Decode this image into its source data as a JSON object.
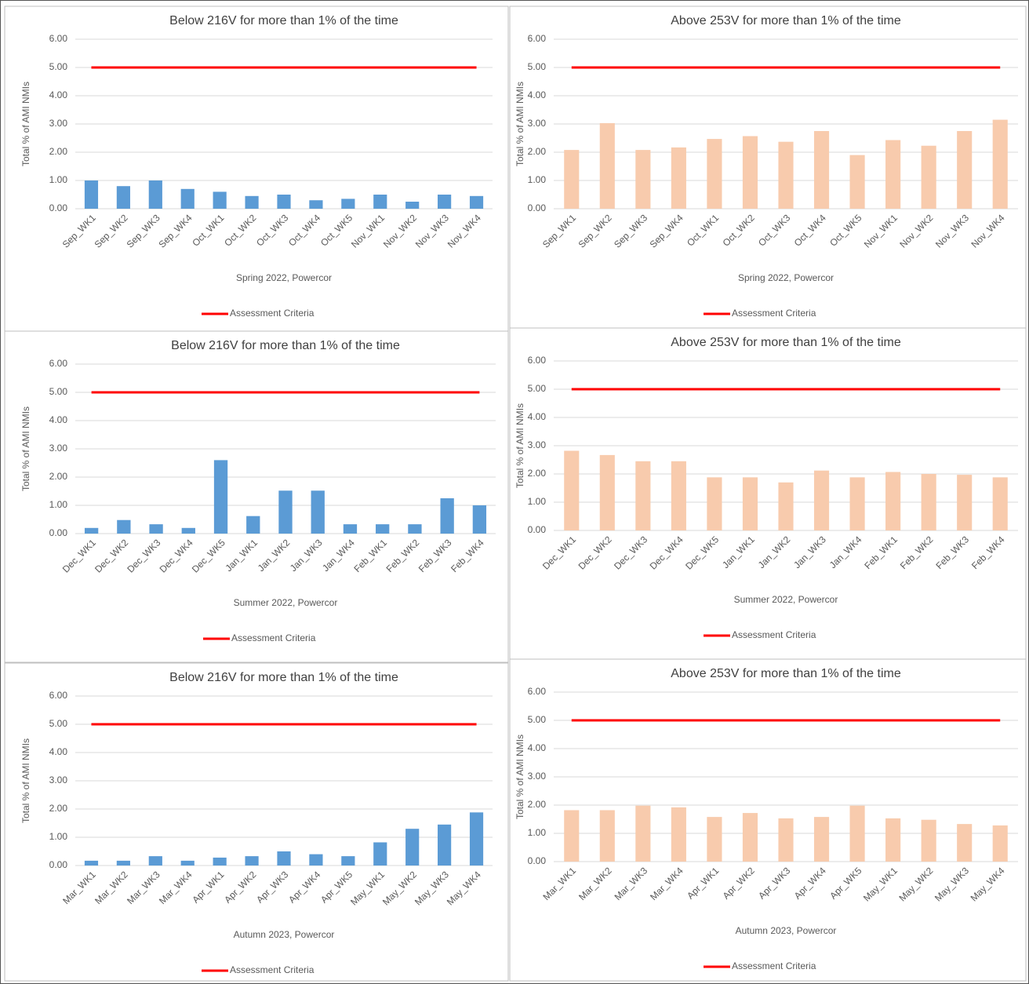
{
  "chart_data": [
    {
      "type": "bar",
      "title": "Below 216V for more than 1% of the time",
      "xlabel": "Spring 2022,  Powercor",
      "ylabel": "Total % of AMI NMIs",
      "categories": [
        "Sep_WK1",
        "Sep_WK2",
        "Sep_WK3",
        "Sep_WK4",
        "Oct_WK1",
        "Oct_WK2",
        "Oct_WK3",
        "Oct_WK4",
        "Oct_WK5",
        "Nov_WK1",
        "Nov_WK2",
        "Nov_WK3",
        "Nov_WK4"
      ],
      "values": [
        1.0,
        0.8,
        1.0,
        0.7,
        0.6,
        0.45,
        0.5,
        0.3,
        0.35,
        0.5,
        0.25,
        0.5,
        0.45
      ],
      "color": "#5b9bd5",
      "reference_line": {
        "name": "Assessment Criteria",
        "color": "#ff0000",
        "value": 5
      },
      "ylim": [
        0,
        6
      ],
      "yticks": [
        {
          "value": 0,
          "label": "0.00"
        },
        {
          "value": 1,
          "label": "1.00"
        },
        {
          "value": 2,
          "label": "2.00"
        },
        {
          "value": 3,
          "label": "3.00"
        },
        {
          "value": 4,
          "label": "4.00"
        },
        {
          "value": 5,
          "label": "5.00"
        },
        {
          "value": 6,
          "label": "6.00"
        }
      ],
      "grid": true
    },
    {
      "type": "bar",
      "title": "Above 253V for more than 1% of the time",
      "xlabel": "Spring 2022,  Powercor",
      "ylabel": "Total % of AMI NMIs",
      "categories": [
        "Sep_WK1",
        "Sep_WK2",
        "Sep_WK3",
        "Sep_WK4",
        "Oct_WK1",
        "Oct_WK2",
        "Oct_WK3",
        "Oct_WK4",
        "Oct_WK5",
        "Nov_WK1",
        "Nov_WK2",
        "Nov_WK3",
        "Nov_WK4"
      ],
      "values": [
        2.08,
        3.03,
        2.08,
        2.17,
        2.47,
        2.57,
        2.37,
        2.75,
        1.9,
        2.43,
        2.23,
        2.75,
        3.15
      ],
      "color": "#f8cbad",
      "reference_line": {
        "name": "Assessment Criteria",
        "color": "#ff0000",
        "value": 5
      },
      "ylim": [
        0,
        6
      ],
      "yticks": [
        {
          "value": 0,
          "label": "0.00"
        },
        {
          "value": 1,
          "label": "1.00"
        },
        {
          "value": 2,
          "label": "2.00"
        },
        {
          "value": 3,
          "label": "3.00"
        },
        {
          "value": 4,
          "label": "4.00"
        },
        {
          "value": 5,
          "label": "5.00"
        },
        {
          "value": 6,
          "label": "6.00"
        }
      ],
      "grid": true
    },
    {
      "type": "bar",
      "title": "Below 216V for more than 1% of the time",
      "xlabel": "Summer 2022,  Powercor",
      "ylabel": "Total % of AMI NMIs",
      "categories": [
        "Dec_WK1",
        "Dec_WK2",
        "Dec_WK3",
        "Dec_WK4",
        "Dec_WK5",
        "Jan_WK1",
        "Jan_WK2",
        "Jan_WK3",
        "Jan_WK4",
        "Feb_WK1",
        "Feb_WK2",
        "Feb_WK3",
        "Feb_WK4"
      ],
      "values": [
        0.2,
        0.48,
        0.33,
        0.2,
        2.6,
        0.62,
        1.52,
        1.52,
        0.33,
        0.33,
        0.33,
        1.25,
        1.0
      ],
      "color": "#5b9bd5",
      "reference_line": {
        "name": "Assessment Criteria",
        "color": "#ff0000",
        "value": 5
      },
      "ylim": [
        0,
        6
      ],
      "yticks": [
        {
          "value": 0,
          "label": "0.00"
        },
        {
          "value": 1,
          "label": "1.00"
        },
        {
          "value": 2,
          "label": "2.00"
        },
        {
          "value": 3,
          "label": "3.00"
        },
        {
          "value": 4,
          "label": "4.00"
        },
        {
          "value": 5,
          "label": "5.00"
        },
        {
          "value": 6,
          "label": "6.00"
        }
      ],
      "grid": true
    },
    {
      "type": "bar",
      "title": "Above 253V for more than 1% of the time",
      "xlabel": "Summer 2022,  Powercor",
      "ylabel": "Total % of AMI NMIs",
      "categories": [
        "Dec_WK1",
        "Dec_WK2",
        "Dec_WK3",
        "Dec_WK4",
        "Dec_WK5",
        "Jan_WK1",
        "Jan_WK2",
        "Jan_WK3",
        "Jan_WK4",
        "Feb_WK1",
        "Feb_WK2",
        "Feb_WK3",
        "Feb_WK4"
      ],
      "values": [
        2.82,
        2.67,
        2.45,
        2.45,
        1.88,
        1.88,
        1.7,
        2.12,
        1.88,
        2.07,
        2.0,
        1.97,
        1.88
      ],
      "color": "#f8cbad",
      "reference_line": {
        "name": "Assessment Criteria",
        "color": "#ff0000",
        "value": 5
      },
      "ylim": [
        0,
        6
      ],
      "yticks": [
        {
          "value": 0,
          "label": "0.00"
        },
        {
          "value": 1,
          "label": "1.00"
        },
        {
          "value": 2,
          "label": "2.00"
        },
        {
          "value": 3,
          "label": "3.00"
        },
        {
          "value": 4,
          "label": "4.00"
        },
        {
          "value": 5,
          "label": "5.00"
        },
        {
          "value": 6,
          "label": "6.00"
        }
      ],
      "grid": true
    },
    {
      "type": "bar",
      "title": "Below 216V for more than 1% of the time",
      "xlabel": "Autumn 2023,  Powercor",
      "ylabel": "Total % of AMI NMIs",
      "categories": [
        "Mar_WK1",
        "Mar_WK2",
        "Mar_WK3",
        "Mar_WK4",
        "Apr_WK1",
        "Apr_WK2",
        "Apr_WK3",
        "Apr_WK4",
        "Apr_WK5",
        "May_WK1",
        "May_WK2",
        "May_WK3",
        "May_WK4"
      ],
      "values": [
        0.17,
        0.17,
        0.33,
        0.17,
        0.28,
        0.33,
        0.5,
        0.4,
        0.33,
        0.82,
        1.3,
        1.45,
        1.88
      ],
      "color": "#5b9bd5",
      "reference_line": {
        "name": "Assessment Criteria",
        "color": "#ff0000",
        "value": 5
      },
      "ylim": [
        0,
        6
      ],
      "yticks": [
        {
          "value": 0,
          "label": "0.00"
        },
        {
          "value": 1,
          "label": "1.00"
        },
        {
          "value": 2,
          "label": "2.00"
        },
        {
          "value": 3,
          "label": "3.00"
        },
        {
          "value": 4,
          "label": "4.00"
        },
        {
          "value": 5,
          "label": "5.00"
        },
        {
          "value": 6,
          "label": "6.00"
        }
      ],
      "grid": true
    },
    {
      "type": "bar",
      "title": "Above 253V for more than 1% of the time",
      "xlabel": "Autumn 2023,  Powercor",
      "ylabel": "Total % of AMI NMIs",
      "categories": [
        "Mar_WK1",
        "Mar_WK2",
        "Mar_WK3",
        "Mar_WK4",
        "Apr_WK1",
        "Apr_WK2",
        "Apr_WK3",
        "Apr_WK4",
        "Apr_WK5",
        "May_WK1",
        "May_WK2",
        "May_WK3",
        "May_WK4"
      ],
      "values": [
        1.82,
        1.82,
        1.98,
        1.92,
        1.58,
        1.72,
        1.53,
        1.58,
        1.98,
        1.53,
        1.48,
        1.33,
        1.28
      ],
      "color": "#f8cbad",
      "reference_line": {
        "name": "Assessment Criteria",
        "color": "#ff0000",
        "value": 5
      },
      "ylim": [
        0,
        6
      ],
      "yticks": [
        {
          "value": 0,
          "label": "0.00"
        },
        {
          "value": 1,
          "label": "1.00"
        },
        {
          "value": 2,
          "label": "2.00"
        },
        {
          "value": 3,
          "label": "3.00"
        },
        {
          "value": 4,
          "label": "4.00"
        },
        {
          "value": 5,
          "label": "5.00"
        },
        {
          "value": 6,
          "label": "6.00"
        }
      ],
      "grid": true
    }
  ]
}
